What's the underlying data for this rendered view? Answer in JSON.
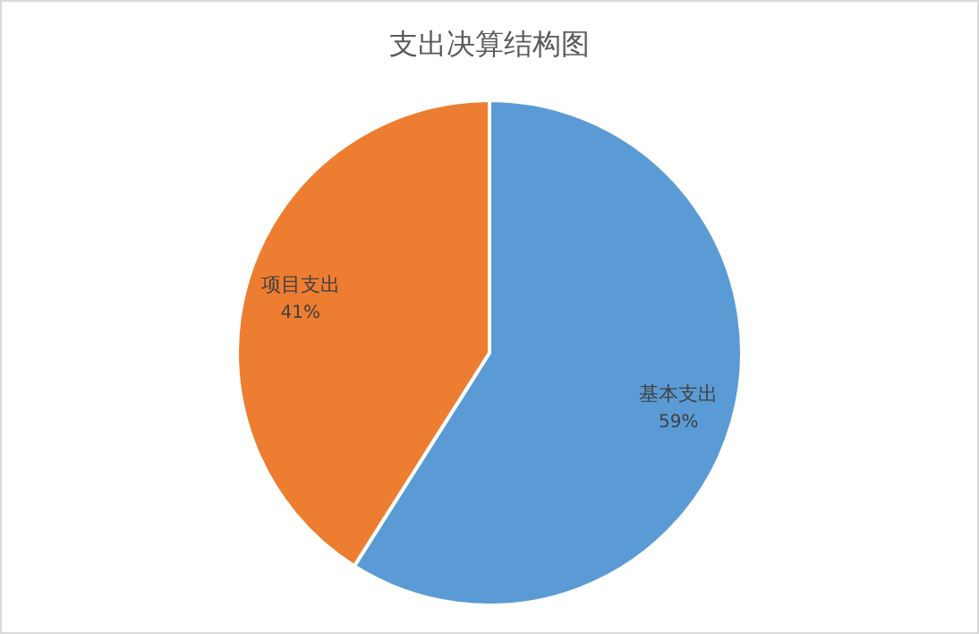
{
  "chart_data": {
    "type": "pie",
    "title": "支出决算结构图",
    "categories": [
      "基本支出",
      "项目支出"
    ],
    "values": [
      59,
      41
    ],
    "colors": [
      "#5b9bd5",
      "#ed7d31"
    ],
    "value_labels": [
      "59%",
      "41%"
    ],
    "legend": false
  }
}
